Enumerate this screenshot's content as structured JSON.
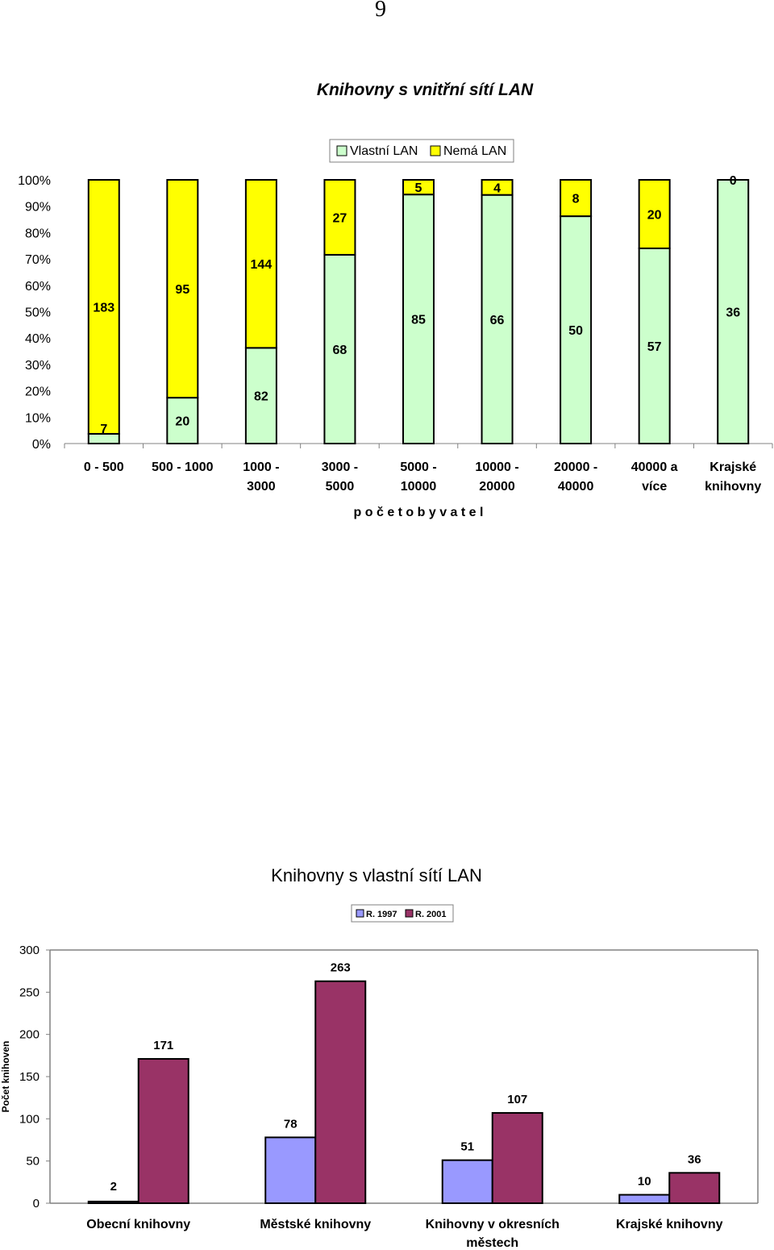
{
  "page": {
    "number": "9"
  },
  "colors": {
    "vlastni": "#ccffcc",
    "nema": "#ffff00",
    "r1997": "#9999ff",
    "r2001": "#993366",
    "axis": "#808080",
    "ink": "#000000"
  },
  "chart_data": [
    {
      "type": "bar",
      "stacked": "percent",
      "title": "Knihovny s vnitřní sítí LAN",
      "xlabel": "p o č e t   o b y v a t e l",
      "ylabel": "",
      "ylim": [
        0,
        100
      ],
      "yticks": [
        "0%",
        "10%",
        "20%",
        "30%",
        "40%",
        "50%",
        "60%",
        "70%",
        "80%",
        "90%",
        "100%"
      ],
      "legend_position": "top",
      "categories": [
        [
          "0 - 500"
        ],
        [
          "500 - 1000"
        ],
        [
          "1000 -",
          "3000"
        ],
        [
          "3000 -",
          "5000"
        ],
        [
          "5000 -",
          "10000"
        ],
        [
          "10000 -",
          "20000"
        ],
        [
          "20000 -",
          "40000"
        ],
        [
          "40000 a",
          "více"
        ],
        [
          "Krajské",
          "knihovny"
        ]
      ],
      "series": [
        {
          "name": "Vlastní LAN",
          "color": "#ccffcc",
          "values": [
            7,
            20,
            82,
            68,
            85,
            66,
            50,
            57,
            36
          ]
        },
        {
          "name": "Nemá LAN",
          "color": "#ffff00",
          "values": [
            183,
            95,
            144,
            27,
            5,
            4,
            8,
            20,
            0
          ]
        }
      ]
    },
    {
      "type": "bar",
      "title": "Knihovny s vlastní sítí LAN",
      "xlabel": "",
      "ylabel": "Počet knihoven",
      "ylim": [
        0,
        300
      ],
      "yticks": [
        "0",
        "50",
        "100",
        "150",
        "200",
        "250",
        "300"
      ],
      "legend_position": "top-right",
      "categories": [
        [
          "Obecní knihovny"
        ],
        [
          "Městské knihovny"
        ],
        [
          "Knihovny v okresních",
          "městech"
        ],
        [
          "Krajské knihovny"
        ]
      ],
      "series": [
        {
          "name": "R. 1997",
          "color": "#9999ff",
          "values": [
            2,
            78,
            51,
            10
          ]
        },
        {
          "name": "R. 2001",
          "color": "#993366",
          "values": [
            171,
            263,
            107,
            36
          ]
        }
      ]
    }
  ]
}
